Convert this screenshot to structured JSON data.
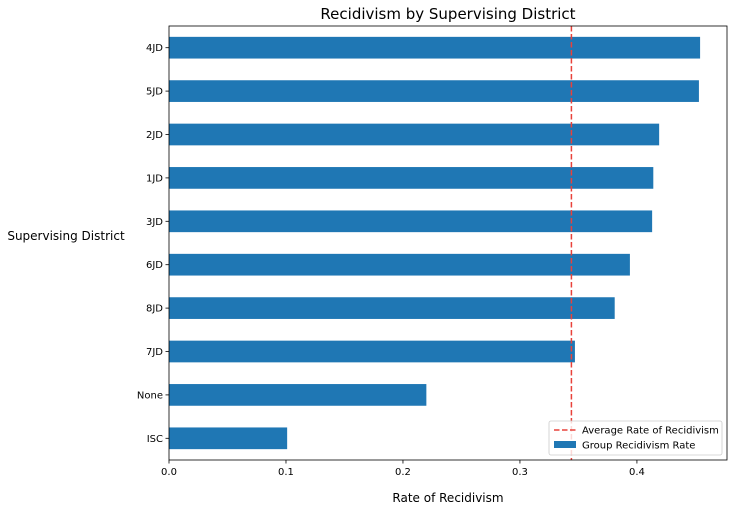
{
  "chart_data": {
    "type": "bar",
    "orientation": "horizontal",
    "title": "Recidivism by Supervising District",
    "xlabel": "Rate of Recidivism",
    "ylabel": "Supervising District",
    "categories": [
      "4JD",
      "5JD",
      "2JD",
      "1JD",
      "3JD",
      "6JD",
      "8JD",
      "7JD",
      "None",
      "ISC"
    ],
    "series": [
      {
        "name": "Group Recidivism Rate",
        "values": [
          0.454,
          0.453,
          0.419,
          0.414,
          0.413,
          0.394,
          0.381,
          0.347,
          0.22,
          0.101
        ],
        "color": "#1f77b4"
      }
    ],
    "reference_line": {
      "name": "Average Rate of Recidivism",
      "value": 0.344,
      "color": "#e8423b",
      "style": "dashed"
    },
    "xlim": [
      0,
      0.477
    ],
    "xticks": [
      "0.0",
      "0.1",
      "0.2",
      "0.3",
      "0.4"
    ],
    "legend_position": "lower-right",
    "grid": false
  }
}
